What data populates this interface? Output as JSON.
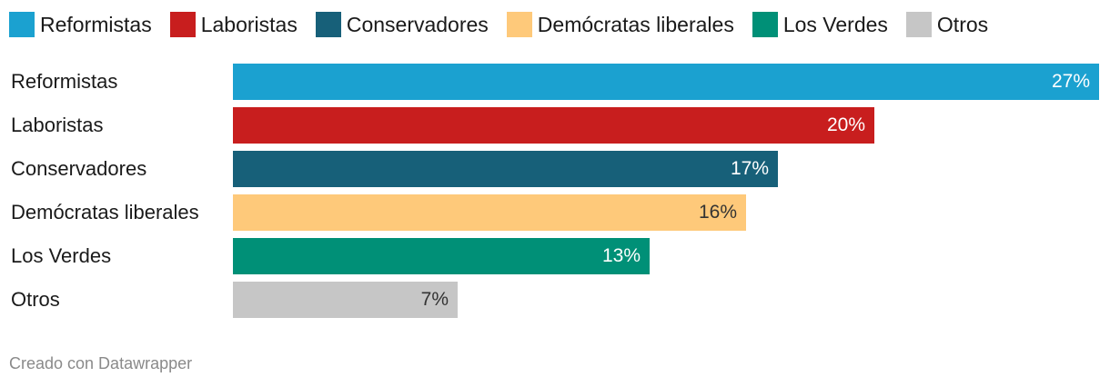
{
  "chart_data": {
    "type": "bar",
    "orientation": "horizontal",
    "categories": [
      "Reformistas",
      "Laboristas",
      "Conservadores",
      "Demócratas liberales",
      "Los Verdes",
      "Otros"
    ],
    "values": [
      27,
      20,
      17,
      16,
      13,
      7
    ],
    "value_labels": [
      "27%",
      "20%",
      "17%",
      "16%",
      "13%",
      "7%"
    ],
    "colors": [
      "#1ba1d0",
      "#c81e1e",
      "#176079",
      "#fec97a",
      "#009077",
      "#c6c6c6"
    ],
    "label_colors": [
      "#ffffff",
      "#ffffff",
      "#ffffff",
      "#333333",
      "#ffffff",
      "#333333"
    ],
    "legend": [
      "Reformistas",
      "Laboristas",
      "Conservadores",
      "Demócratas liberales",
      "Los Verdes",
      "Otros"
    ],
    "legend_placement": "top-left",
    "xlim": [
      0,
      27
    ],
    "grid": false
  },
  "credit": "Creado con Datawrapper"
}
